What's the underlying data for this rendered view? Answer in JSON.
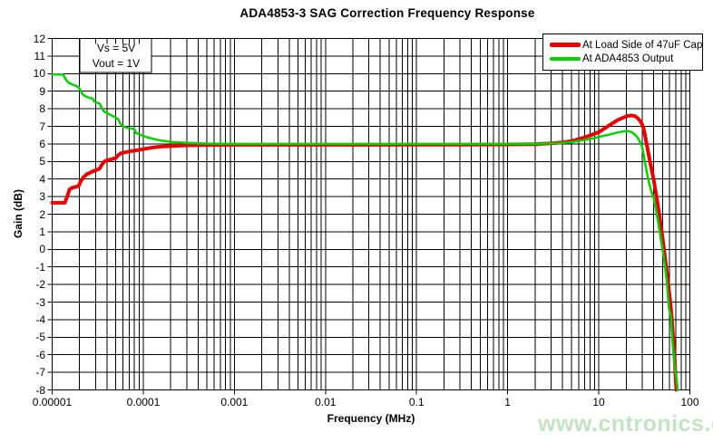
{
  "watermark": {
    "text": "www.cntronics.com",
    "color": "#bfe3bf"
  },
  "chart_data": {
    "type": "line",
    "title": "ADA4853-3 SAG Correction Frequency Response",
    "xlabel": "Frequency (MHz)",
    "ylabel": "Gain (dB)",
    "x_scale": "log",
    "xlim": [
      1e-05,
      100
    ],
    "ylim": [
      -8,
      12
    ],
    "x_ticks": [
      "0.00001",
      "0.0001",
      "0.001",
      "0.01",
      "0.1",
      "1",
      "10",
      "100"
    ],
    "y_ticks": [
      "12",
      "11",
      "10",
      "9",
      "8",
      "7",
      "6",
      "5",
      "4",
      "3",
      "2",
      "1",
      "0",
      "-1",
      "-2",
      "-3",
      "-4",
      "-5",
      "-6",
      "-7",
      "-8"
    ],
    "y_tick_step": 1,
    "grid": {
      "horizontal_step_db": 1,
      "vertical": "full log grid with minor lines 2-9 per decade"
    },
    "legend_position": "top-right",
    "annotation": {
      "lines": [
        "Vs = 5V",
        "Vout = 1V"
      ]
    },
    "series": [
      {
        "name": "At Load Side of 47uF Cap",
        "color": "#ee0000",
        "stroke_width": 4,
        "points": [
          [
            1e-05,
            2.65
          ],
          [
            1.38e-05,
            2.65
          ],
          [
            1.45e-05,
            2.95
          ],
          [
            1.55e-05,
            3.4
          ],
          [
            1.65e-05,
            3.5
          ],
          [
            1.8e-05,
            3.55
          ],
          [
            1.95e-05,
            3.6
          ],
          [
            2.05e-05,
            3.85
          ],
          [
            2.2e-05,
            4.1
          ],
          [
            2.4e-05,
            4.28
          ],
          [
            2.7e-05,
            4.4
          ],
          [
            3e-05,
            4.5
          ],
          [
            3.3e-05,
            4.58
          ],
          [
            3.5e-05,
            4.8
          ],
          [
            3.7e-05,
            4.98
          ],
          [
            4e-05,
            5.07
          ],
          [
            4.5e-05,
            5.13
          ],
          [
            5e-05,
            5.2
          ],
          [
            5.3e-05,
            5.35
          ],
          [
            5.7e-05,
            5.47
          ],
          [
            6.3e-05,
            5.52
          ],
          [
            7e-05,
            5.57
          ],
          [
            8e-05,
            5.62
          ],
          [
            9e-05,
            5.66
          ],
          [
            0.0001,
            5.7
          ],
          [
            0.00012,
            5.78
          ],
          [
            0.00015,
            5.84
          ],
          [
            0.0002,
            5.88
          ],
          [
            0.0003,
            5.92
          ],
          [
            0.0005,
            5.94
          ],
          [
            0.001,
            5.95
          ],
          [
            0.003,
            5.95
          ],
          [
            0.01,
            5.95
          ],
          [
            0.03,
            5.95
          ],
          [
            0.1,
            5.96
          ],
          [
            0.3,
            5.96
          ],
          [
            1,
            5.97
          ],
          [
            2,
            5.99
          ],
          [
            3,
            6.03
          ],
          [
            4,
            6.09
          ],
          [
            5,
            6.16
          ],
          [
            6.3,
            6.3
          ],
          [
            8,
            6.48
          ],
          [
            10,
            6.67
          ],
          [
            13,
            7.05
          ],
          [
            16,
            7.35
          ],
          [
            19,
            7.52
          ],
          [
            21,
            7.6
          ],
          [
            23,
            7.62
          ],
          [
            25,
            7.58
          ],
          [
            27,
            7.45
          ],
          [
            29,
            7.25
          ],
          [
            30,
            7.1
          ],
          [
            31,
            6.9
          ],
          [
            32,
            6.55
          ],
          [
            33,
            6.2
          ],
          [
            34,
            5.85
          ],
          [
            36,
            5.15
          ],
          [
            38,
            4.55
          ],
          [
            40,
            4.0
          ],
          [
            43,
            3.0
          ],
          [
            46,
            2.05
          ],
          [
            49,
            1.05
          ],
          [
            52,
            0.0
          ],
          [
            55,
            -1.0
          ],
          [
            58,
            -2.0
          ],
          [
            61,
            -3.0
          ],
          [
            63,
            -3.75
          ],
          [
            64,
            -4.25
          ],
          [
            66,
            -5.2
          ],
          [
            68,
            -6.2
          ],
          [
            69.8,
            -7.3
          ],
          [
            71,
            -8.0
          ]
        ]
      },
      {
        "name": "At ADA4853 Output",
        "color": "#00d500",
        "stroke_width": 2.5,
        "points": [
          [
            1e-05,
            9.95
          ],
          [
            1.32e-05,
            9.95
          ],
          [
            1.42e-05,
            9.65
          ],
          [
            1.5e-05,
            9.5
          ],
          [
            1.6e-05,
            9.42
          ],
          [
            1.8e-05,
            9.32
          ],
          [
            1.95e-05,
            9.22
          ],
          [
            2.05e-05,
            9.05
          ],
          [
            2.15e-05,
            8.82
          ],
          [
            2.3e-05,
            8.72
          ],
          [
            2.55e-05,
            8.63
          ],
          [
            2.8e-05,
            8.57
          ],
          [
            2.9e-05,
            8.42
          ],
          [
            3.1e-05,
            8.35
          ],
          [
            3.35e-05,
            8.28
          ],
          [
            3.5e-05,
            8.05
          ],
          [
            3.7e-05,
            7.85
          ],
          [
            4e-05,
            7.75
          ],
          [
            4.4e-05,
            7.65
          ],
          [
            4.9e-05,
            7.52
          ],
          [
            5.3e-05,
            7.42
          ],
          [
            5.6e-05,
            7.15
          ],
          [
            6e-05,
            7.0
          ],
          [
            6.5e-05,
            6.93
          ],
          [
            7.3e-05,
            6.88
          ],
          [
            8e-05,
            6.83
          ],
          [
            8.3e-05,
            6.63
          ],
          [
            9e-05,
            6.55
          ],
          [
            0.0001,
            6.46
          ],
          [
            0.00011,
            6.38
          ],
          [
            0.00013,
            6.28
          ],
          [
            0.00016,
            6.18
          ],
          [
            0.0002,
            6.12
          ],
          [
            0.0003,
            6.06
          ],
          [
            0.0005,
            6.02
          ],
          [
            0.001,
            6.0
          ],
          [
            0.003,
            6.0
          ],
          [
            0.01,
            6.0
          ],
          [
            0.03,
            6.0
          ],
          [
            0.1,
            6.0
          ],
          [
            0.3,
            6.0
          ],
          [
            1,
            6.0
          ],
          [
            2,
            6.01
          ],
          [
            3,
            6.03
          ],
          [
            4,
            6.06
          ],
          [
            5,
            6.1
          ],
          [
            6.3,
            6.18
          ],
          [
            8,
            6.28
          ],
          [
            10,
            6.4
          ],
          [
            13,
            6.53
          ],
          [
            16,
            6.65
          ],
          [
            19,
            6.72
          ],
          [
            21,
            6.73
          ],
          [
            23,
            6.67
          ],
          [
            25,
            6.53
          ],
          [
            27,
            6.32
          ],
          [
            29,
            6.0
          ],
          [
            30,
            5.82
          ],
          [
            31,
            5.45
          ],
          [
            32,
            5.0
          ],
          [
            34,
            4.3
          ],
          [
            36,
            3.7
          ],
          [
            38,
            3.25
          ],
          [
            40,
            2.95
          ],
          [
            43,
            2.1
          ],
          [
            46,
            1.2
          ],
          [
            49,
            0.3
          ],
          [
            52,
            -0.55
          ],
          [
            54,
            -1.2
          ],
          [
            56,
            -1.9
          ],
          [
            58,
            -2.9
          ],
          [
            59,
            -3.35
          ],
          [
            60,
            -3.55
          ],
          [
            61.5,
            -3.7
          ],
          [
            62.5,
            -4.3
          ],
          [
            64,
            -5.05
          ],
          [
            66,
            -5.85
          ],
          [
            68,
            -6.55
          ],
          [
            70,
            -7.1
          ],
          [
            72,
            -7.6
          ],
          [
            73.5,
            -8.0
          ]
        ]
      }
    ]
  }
}
